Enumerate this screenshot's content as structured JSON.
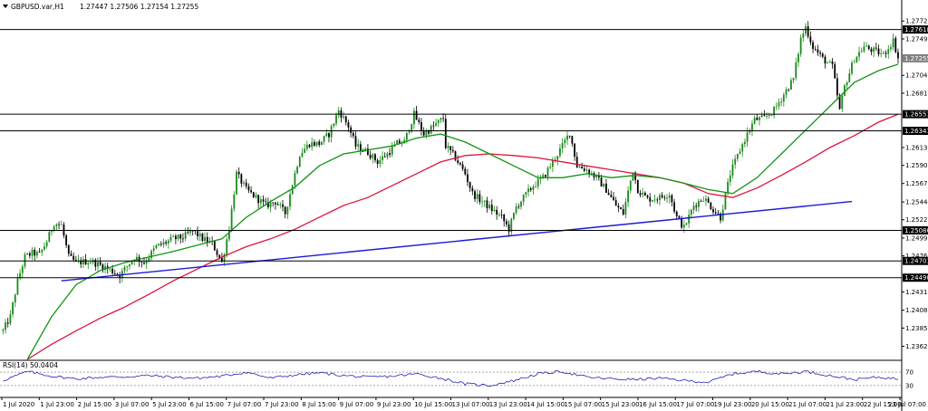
{
  "header": {
    "symbol": "GBPUSD.var,H1",
    "ohlc": "1.27447 1.27506 1.27154 1.27255"
  },
  "rsi_label": "RSI(14) 50.0404",
  "colors": {
    "background": "#ffffff",
    "bull_candle": "#1a8a1a",
    "bear_candle": "#000000",
    "ma_fast": "#149414",
    "ma_slow": "#dc143c",
    "trendline": "#1a1ad6",
    "hline": "#000000",
    "rsi": "#2323b4",
    "grid": "#000000"
  },
  "chart_data": [
    {
      "type": "candlestick",
      "symbol": "GBPUSD.var",
      "timeframe": "H1",
      "y_ticks": [
        "1.27725",
        "1.27499",
        "1.27040",
        "1.26815",
        "1.26130",
        "1.25905",
        "1.25677",
        "1.25444",
        "1.25220",
        "1.24990",
        "1.24765",
        "1.24310",
        "1.24080",
        "1.23855",
        "1.23625"
      ],
      "price_tags": [
        {
          "value": "1.27618",
          "kind": "level"
        },
        {
          "value": "1.27255",
          "kind": "current"
        },
        {
          "value": "1.26551",
          "kind": "level"
        },
        {
          "value": "1.26341",
          "kind": "level"
        },
        {
          "value": "1.25086",
          "kind": "level"
        },
        {
          "value": "1.24701",
          "kind": "level"
        },
        {
          "value": "1.24490",
          "kind": "level"
        }
      ],
      "x_ticks": [
        "1 Jul 2020",
        "1 Jul 23:00",
        "2 Jul 15:00",
        "3 Jul 07:00",
        "5 Jul 23:00",
        "6 Jul 15:00",
        "7 Jul 07:00",
        "7 Jul 23:00",
        "8 Jul 15:00",
        "9 Jul 07:00",
        "9 Jul 23:00",
        "10 Jul 15:00",
        "13 Jul 07:00",
        "13 Jul 23:00",
        "14 Jul 15:00",
        "15 Jul 07:00",
        "15 Jul 23:00",
        "16 Jul 15:00",
        "17 Jul 07:00",
        "19 Jul 23:00",
        "20 Jul 15:00",
        "21 Jul 07:00",
        "21 Jul 23:00",
        "22 Jul 15:00",
        "23 Jul 07:00"
      ],
      "ylim": [
        1.2346,
        1.2783
      ],
      "horizontal_lines": [
        1.27618,
        1.26551,
        1.26341,
        1.25086,
        1.24701,
        1.2449
      ],
      "trendline": {
        "from": {
          "bar": 24,
          "value": 1.2445
        },
        "to": {
          "bar": 349,
          "value": 1.2545
        }
      },
      "close_path": [
        [
          0,
          1.2382
        ],
        [
          3,
          1.24
        ],
        [
          6,
          1.2445
        ],
        [
          9,
          1.2475
        ],
        [
          12,
          1.248
        ],
        [
          15,
          1.2478
        ],
        [
          18,
          1.2495
        ],
        [
          21,
          1.2518
        ],
        [
          24,
          1.2515
        ],
        [
          27,
          1.2475
        ],
        [
          30,
          1.2468
        ],
        [
          36,
          1.247
        ],
        [
          42,
          1.2462
        ],
        [
          48,
          1.2452
        ],
        [
          54,
          1.2475
        ],
        [
          58,
          1.2468
        ],
        [
          63,
          1.2488
        ],
        [
          66,
          1.2492
        ],
        [
          70,
          1.2498
        ],
        [
          74,
          1.25
        ],
        [
          78,
          1.2508
        ],
        [
          82,
          1.2498
        ],
        [
          86,
          1.2492
        ],
        [
          90,
          1.2468
        ],
        [
          93,
          1.2512
        ],
        [
          96,
          1.258
        ],
        [
          100,
          1.256
        ],
        [
          104,
          1.255
        ],
        [
          108,
          1.254
        ],
        [
          112,
          1.2545
        ],
        [
          116,
          1.253
        ],
        [
          118,
          1.2555
        ],
        [
          122,
          1.2605
        ],
        [
          126,
          1.2618
        ],
        [
          130,
          1.2618
        ],
        [
          134,
          1.263
        ],
        [
          138,
          1.266
        ],
        [
          142,
          1.264
        ],
        [
          145,
          1.2615
        ],
        [
          150,
          1.2607
        ],
        [
          154,
          1.2595
        ],
        [
          158,
          1.2605
        ],
        [
          162,
          1.2618
        ],
        [
          165,
          1.262
        ],
        [
          169,
          1.2655
        ],
        [
          173,
          1.263
        ],
        [
          177,
          1.264
        ],
        [
          181,
          1.265
        ],
        [
          182,
          1.2615
        ],
        [
          186,
          1.26
        ],
        [
          190,
          1.258
        ],
        [
          193,
          1.2555
        ],
        [
          197,
          1.2545
        ],
        [
          201,
          1.2535
        ],
        [
          205,
          1.2525
        ],
        [
          208,
          1.251
        ],
        [
          211,
          1.2538
        ],
        [
          214,
          1.255
        ],
        [
          218,
          1.2565
        ],
        [
          222,
          1.2575
        ],
        [
          226,
          1.2595
        ],
        [
          230,
          1.2615
        ],
        [
          233,
          1.2632
        ],
        [
          236,
          1.259
        ],
        [
          240,
          1.2585
        ],
        [
          244,
          1.2575
        ],
        [
          248,
          1.256
        ],
        [
          252,
          1.254
        ],
        [
          255,
          1.253
        ],
        [
          259,
          1.2585
        ],
        [
          261,
          1.256
        ],
        [
          265,
          1.2548
        ],
        [
          270,
          1.255
        ],
        [
          274,
          1.2555
        ],
        [
          277,
          1.2525
        ],
        [
          280,
          1.2512
        ],
        [
          284,
          1.254
        ],
        [
          288,
          1.255
        ],
        [
          292,
          1.2535
        ],
        [
          295,
          1.2525
        ],
        [
          299,
          1.258
        ],
        [
          303,
          1.261
        ],
        [
          306,
          1.263
        ],
        [
          309,
          1.2648
        ],
        [
          313,
          1.265
        ],
        [
          317,
          1.266
        ],
        [
          321,
          1.268
        ],
        [
          325,
          1.27
        ],
        [
          328,
          1.275
        ],
        [
          330,
          1.2765
        ],
        [
          333,
          1.274
        ],
        [
          337,
          1.2725
        ],
        [
          341,
          1.2715
        ],
        [
          344,
          1.266
        ],
        [
          346,
          1.269
        ],
        [
          350,
          1.2725
        ],
        [
          354,
          1.274
        ],
        [
          358,
          1.2735
        ],
        [
          362,
          1.273
        ],
        [
          366,
          1.2748
        ],
        [
          368,
          1.2726
        ]
      ],
      "ma_fast_path": [
        [
          10,
          1.2346
        ],
        [
          20,
          1.24
        ],
        [
          30,
          1.244
        ],
        [
          40,
          1.2458
        ],
        [
          50,
          1.2468
        ],
        [
          60,
          1.2475
        ],
        [
          70,
          1.2482
        ],
        [
          80,
          1.249
        ],
        [
          90,
          1.2498
        ],
        [
          100,
          1.2525
        ],
        [
          110,
          1.2545
        ],
        [
          120,
          1.2563
        ],
        [
          130,
          1.259
        ],
        [
          140,
          1.2605
        ],
        [
          150,
          1.261
        ],
        [
          160,
          1.2615
        ],
        [
          170,
          1.2625
        ],
        [
          180,
          1.263
        ],
        [
          190,
          1.262
        ],
        [
          200,
          1.2605
        ],
        [
          210,
          1.259
        ],
        [
          220,
          1.2575
        ],
        [
          230,
          1.2575
        ],
        [
          240,
          1.258
        ],
        [
          250,
          1.2575
        ],
        [
          260,
          1.2578
        ],
        [
          270,
          1.2575
        ],
        [
          280,
          1.2568
        ],
        [
          290,
          1.256
        ],
        [
          300,
          1.2555
        ],
        [
          310,
          1.2575
        ],
        [
          320,
          1.2605
        ],
        [
          330,
          1.2635
        ],
        [
          340,
          1.2665
        ],
        [
          350,
          1.2695
        ],
        [
          360,
          1.271
        ],
        [
          368,
          1.2718
        ]
      ],
      "ma_slow_path": [
        [
          10,
          1.2346
        ],
        [
          20,
          1.2365
        ],
        [
          30,
          1.2382
        ],
        [
          40,
          1.2398
        ],
        [
          50,
          1.2412
        ],
        [
          60,
          1.2428
        ],
        [
          70,
          1.2445
        ],
        [
          80,
          1.246
        ],
        [
          90,
          1.2475
        ],
        [
          100,
          1.2488
        ],
        [
          110,
          1.2498
        ],
        [
          120,
          1.251
        ],
        [
          130,
          1.2525
        ],
        [
          140,
          1.254
        ],
        [
          150,
          1.255
        ],
        [
          160,
          1.2565
        ],
        [
          170,
          1.258
        ],
        [
          180,
          1.2595
        ],
        [
          190,
          1.2603
        ],
        [
          200,
          1.2605
        ],
        [
          210,
          1.2603
        ],
        [
          220,
          1.26
        ],
        [
          230,
          1.2595
        ],
        [
          240,
          1.259
        ],
        [
          250,
          1.2585
        ],
        [
          260,
          1.258
        ],
        [
          270,
          1.2575
        ],
        [
          280,
          1.2568
        ],
        [
          290,
          1.2555
        ],
        [
          300,
          1.255
        ],
        [
          310,
          1.2562
        ],
        [
          320,
          1.2578
        ],
        [
          330,
          1.2595
        ],
        [
          340,
          1.2613
        ],
        [
          350,
          1.2628
        ],
        [
          360,
          1.2645
        ],
        [
          368,
          1.2655
        ]
      ]
    },
    {
      "type": "line",
      "indicator": "RSI",
      "period": 14,
      "current": 50.0404,
      "y_ticks": [
        "70",
        "30"
      ],
      "levels": [
        70,
        30
      ],
      "ylim": [
        0,
        100
      ],
      "x": [
        0,
        10,
        20,
        30,
        40,
        50,
        60,
        70,
        80,
        90,
        100,
        110,
        120,
        130,
        140,
        150,
        160,
        170,
        180,
        190,
        200,
        210,
        220,
        230,
        240,
        250,
        260,
        270,
        280,
        290,
        300,
        310,
        320,
        330,
        340,
        350,
        360,
        368
      ],
      "values": [
        45,
        72,
        58,
        50,
        55,
        56,
        60,
        55,
        52,
        58,
        70,
        52,
        62,
        68,
        60,
        55,
        58,
        65,
        52,
        35,
        30,
        45,
        65,
        72,
        55,
        50,
        48,
        52,
        45,
        40,
        65,
        72,
        65,
        72,
        60,
        48,
        55,
        50
      ]
    }
  ]
}
